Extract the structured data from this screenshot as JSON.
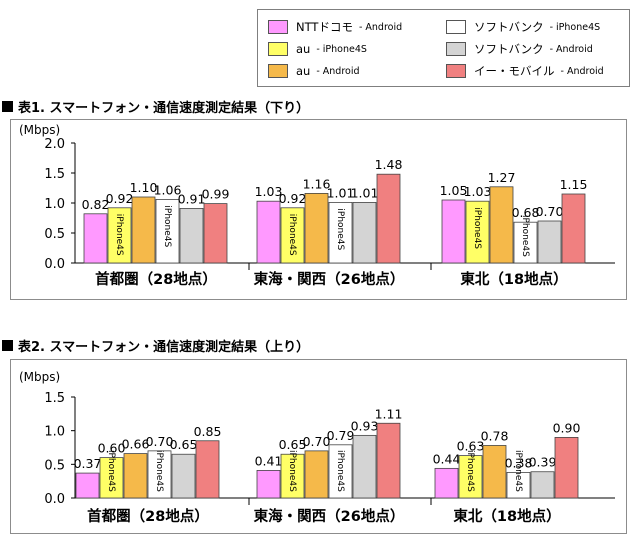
{
  "legend": {
    "entries": [
      {
        "carrier": "NTTドコモ",
        "device": "- Android",
        "color": "#ff99ff"
      },
      {
        "carrier": "ソフトバンク",
        "device": "- iPhone4S",
        "color": "#ffffff"
      },
      {
        "carrier": "au",
        "device": "- iPhone4S",
        "color": "#ffff66"
      },
      {
        "carrier": "ソフトバンク",
        "device": "- Android",
        "color": "#d4d4d4"
      },
      {
        "carrier": "au",
        "device": "- Android",
        "color": "#f5b94a"
      },
      {
        "carrier": "イー・モバイル",
        "device": "- Android",
        "color": "#f08080"
      }
    ]
  },
  "chart_data": [
    {
      "type": "bar",
      "title": "表1. スマートフォン・通信速度測定結果（下り）",
      "ylabel": "(Mbps)",
      "ylim": [
        0,
        2.0
      ],
      "yticks": [
        "0.0",
        "0.5",
        "1.0",
        "1.5",
        "2.0"
      ],
      "categories": [
        "首都圏（28地点）",
        "東海・関西（26地点）",
        "東北（18地点）"
      ],
      "bar_text": "iPhone4S",
      "series": [
        {
          "name": "NTTドコモ - Android",
          "values": [
            0.82,
            1.03,
            1.05
          ],
          "labels": [
            "0.82",
            "1.03",
            "1.05"
          ]
        },
        {
          "name": "au - iPhone4S",
          "values": [
            0.92,
            0.92,
            1.03
          ],
          "labels": [
            "0.92",
            "0.92",
            "1.03"
          ]
        },
        {
          "name": "au - Android",
          "values": [
            1.1,
            1.16,
            1.27
          ],
          "labels": [
            "1.10",
            "1.16",
            "1.27"
          ]
        },
        {
          "name": "ソフトバンク - iPhone4S",
          "values": [
            1.06,
            1.01,
            0.68
          ],
          "labels": [
            "1.06",
            "1.01",
            "0.68"
          ]
        },
        {
          "name": "ソフトバンク - Android",
          "values": [
            0.91,
            1.01,
            0.7
          ],
          "labels": [
            "0.91",
            "1.01",
            "0.70"
          ]
        },
        {
          "name": "イー・モバイル - Android",
          "values": [
            0.99,
            1.48,
            1.15
          ],
          "labels": [
            "0.99",
            "1.48",
            "1.15"
          ]
        }
      ],
      "grid": false,
      "legend": "top-right"
    },
    {
      "type": "bar",
      "title": "表2. スマートフォン・通信速度測定結果（上り）",
      "ylabel": "(Mbps)",
      "ylim": [
        0,
        1.5
      ],
      "yticks": [
        "0.0",
        "0.5",
        "1.0",
        "1.5"
      ],
      "categories": [
        "首都圏（28地点）",
        "東海・関西（26地点）",
        "東北（18地点）"
      ],
      "bar_text": "iPhone4S",
      "series": [
        {
          "name": "NTTドコモ - Android",
          "values": [
            0.37,
            0.41,
            0.44
          ],
          "labels": [
            "0.37",
            "0.41",
            "0.44"
          ]
        },
        {
          "name": "au - iPhone4S",
          "values": [
            0.6,
            0.65,
            0.63
          ],
          "labels": [
            "0.60",
            "0.65",
            "0.63"
          ]
        },
        {
          "name": "au - Android",
          "values": [
            0.66,
            0.7,
            0.78
          ],
          "labels": [
            "0.66",
            "0.70",
            "0.78"
          ]
        },
        {
          "name": "ソフトバンク - iPhone4S",
          "values": [
            0.7,
            0.79,
            0.38
          ],
          "labels": [
            "0.70",
            "0.79",
            "0.38"
          ]
        },
        {
          "name": "ソフトバンク - Android",
          "values": [
            0.65,
            0.93,
            0.39
          ],
          "labels": [
            "0.65",
            "0.93",
            "0.39"
          ]
        },
        {
          "name": "イー・モバイル - Android",
          "values": [
            0.85,
            1.11,
            0.9
          ],
          "labels": [
            "0.85",
            "1.11",
            "0.90"
          ]
        }
      ],
      "grid": false,
      "legend": "top-right"
    }
  ]
}
